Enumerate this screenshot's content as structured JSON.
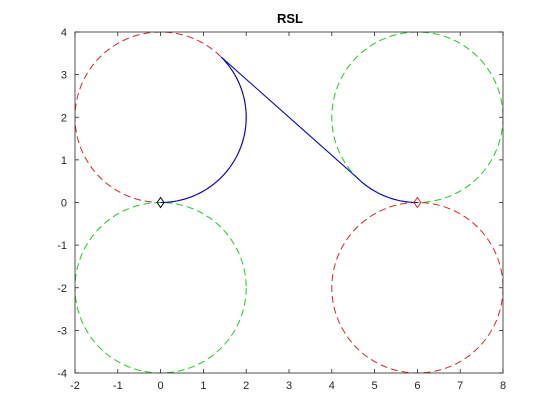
{
  "chart_data": {
    "type": "line",
    "title": "RSL",
    "xlabel": "",
    "ylabel": "",
    "xlim": [
      -2,
      8
    ],
    "ylim": [
      -4,
      4
    ],
    "x_ticks": [
      -2,
      -1,
      0,
      1,
      2,
      3,
      4,
      5,
      6,
      7,
      8
    ],
    "y_ticks": [
      -4,
      -3,
      -2,
      -1,
      0,
      1,
      2,
      3,
      4
    ],
    "grid": false,
    "legend": "none",
    "circles": [
      {
        "cx": 0,
        "cy": 2,
        "r": 2,
        "color": "#d62728",
        "dashed": true
      },
      {
        "cx": 0,
        "cy": -2,
        "r": 2,
        "color": "#22c922",
        "dashed": true
      },
      {
        "cx": 6,
        "cy": 2,
        "r": 2,
        "color": "#22c922",
        "dashed": true
      },
      {
        "cx": 6,
        "cy": -2,
        "r": 2,
        "color": "#d62728",
        "dashed": true
      }
    ],
    "path": {
      "color": "#0000cc",
      "segments": [
        {
          "kind": "arc",
          "cx": 0,
          "cy": 2,
          "r": 2,
          "start_deg": -90,
          "end_deg": 45,
          "direction": "clockwise"
        },
        {
          "kind": "line",
          "from": [
            1.414,
            3.414
          ],
          "to": [
            4.586,
            0.586
          ]
        },
        {
          "kind": "arc",
          "cx": 6,
          "cy": 2,
          "r": 2,
          "start_deg": 225,
          "end_deg": 270,
          "direction": "counterclockwise"
        }
      ]
    },
    "markers": [
      {
        "x": 0,
        "y": 0,
        "shape": "diamond",
        "color": "#000000"
      },
      {
        "x": 6,
        "y": 0,
        "shape": "diamond",
        "color": "#d62728"
      }
    ]
  }
}
